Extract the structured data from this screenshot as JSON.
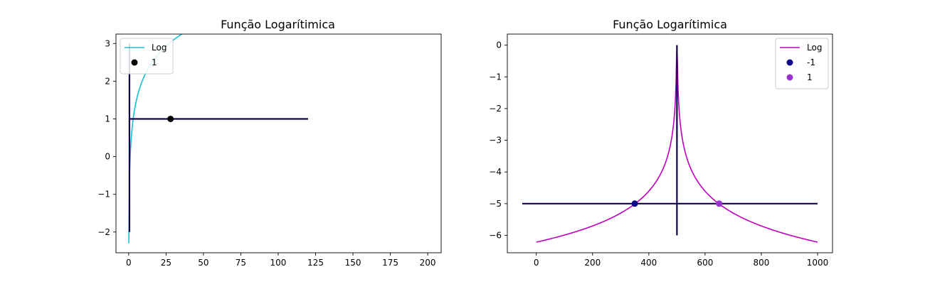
{
  "chart_data": [
    {
      "type": "line",
      "title": "Função Logarítimica",
      "xlabel": "",
      "ylabel": "",
      "xlim": [
        -8.5,
        209.0
      ],
      "ylim": [
        -2.55,
        3.25
      ],
      "xticks": [
        0,
        25,
        50,
        75,
        100,
        125,
        150,
        175,
        200
      ],
      "yticks": [
        -2,
        -1,
        0,
        1,
        2,
        3
      ],
      "xtick_labels": [
        "0",
        "25",
        "50",
        "75",
        "100",
        "125",
        "150",
        "175",
        "200"
      ],
      "ytick_labels": [
        "−2",
        "−1",
        "0",
        "1",
        "2",
        "3"
      ],
      "series": [
        {
          "name": "Log",
          "kind": "line",
          "color": "#17becf",
          "function": "log3",
          "x_range": [
            0.08,
            200
          ],
          "samples": 400
        }
      ],
      "reference_lines": [
        {
          "kind": "vline",
          "x": 0.5,
          "y_range": [
            -2,
            3
          ],
          "color": "#14004d"
        },
        {
          "kind": "hline",
          "y": 1,
          "x_range": [
            0.5,
            120
          ],
          "color": "#14004d"
        }
      ],
      "points": [
        {
          "name": "1",
          "x": 28,
          "y": 1,
          "color": "#000000"
        }
      ],
      "legend": {
        "position": "top-left",
        "entries": [
          {
            "label": "Log",
            "type": "line",
            "color": "#17becf"
          },
          {
            "label": "1",
            "type": "marker",
            "color": "#000000"
          }
        ]
      }
    },
    {
      "type": "line",
      "title": "Função Logarítimica",
      "xlabel": "",
      "ylabel": "",
      "xlim": [
        -103,
        1053
      ],
      "ylim": [
        -6.55,
        0.35
      ],
      "xticks": [
        0,
        200,
        400,
        600,
        800,
        1000
      ],
      "yticks": [
        0,
        -1,
        -2,
        -3,
        -4,
        -5,
        -6
      ],
      "xtick_labels": [
        "0",
        "200",
        "400",
        "600",
        "800",
        "1000"
      ],
      "ytick_labels": [
        "0",
        "−1",
        "−2",
        "−3",
        "−4",
        "−5",
        "−6"
      ],
      "series": [
        {
          "name": "Log",
          "kind": "line",
          "color": "#bf00bf",
          "function": "-ln|x-500|",
          "x_range": [
            0,
            1000
          ],
          "samples": 600,
          "ymax_clip": 0
        }
      ],
      "reference_lines": [
        {
          "kind": "vline",
          "x": 500,
          "y_range": [
            -6,
            0
          ],
          "color": "#14004d"
        },
        {
          "kind": "hline",
          "y": -5,
          "x_range": [
            -50,
            1000
          ],
          "color": "#14004d"
        }
      ],
      "points": [
        {
          "name": "-1",
          "x": 350,
          "y": -5,
          "color": "#0d0a87"
        },
        {
          "name": "1",
          "x": 650,
          "y": -5,
          "color": "#9a32cd"
        }
      ],
      "legend": {
        "position": "top-right",
        "entries": [
          {
            "label": "Log",
            "type": "line",
            "color": "#bf00bf"
          },
          {
            "label": "-1",
            "type": "marker",
            "color": "#0d0a87"
          },
          {
            "label": "1",
            "type": "marker",
            "color": "#9a32cd"
          }
        ]
      }
    }
  ]
}
